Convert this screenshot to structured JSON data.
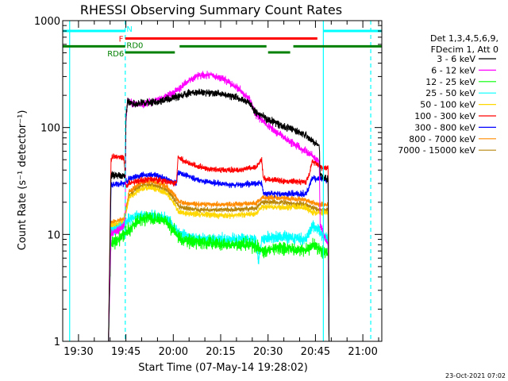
{
  "chart_data": {
    "type": "line",
    "title": "RHESSI Observing Summary Count Rates",
    "xlabel": "Start Time (07-May-14 19:28:02)",
    "ylabel": "Count Rate (s⁻¹ detector⁻¹)",
    "y_scale": "log",
    "ylim": [
      1,
      1000
    ],
    "xlim_minutes": [
      -3.0,
      98.0
    ],
    "x_ticks": [
      {
        "label": "19:30",
        "minute": 2
      },
      {
        "label": "19:45",
        "minute": 17
      },
      {
        "label": "20:00",
        "minute": 32
      },
      {
        "label": "20:15",
        "minute": 47
      },
      {
        "label": "20:30",
        "minute": 62
      },
      {
        "label": "20:45",
        "minute": 77
      },
      {
        "label": "21:00",
        "minute": 92
      }
    ],
    "y_ticks": [
      {
        "label": "1",
        "value": 1
      },
      {
        "label": "10",
        "value": 10
      },
      {
        "label": "100",
        "value": 100
      },
      {
        "label": "1000",
        "value": 1000
      }
    ],
    "legend_header": [
      "Det 1,3,4,5,6,9,",
      "FDecim 1, Att 0"
    ],
    "legend_position": "right",
    "timestamp": "23-Oct-2021 07:02",
    "series": [
      {
        "name": "3 - 6 keV",
        "color": "#000000",
        "points": [
          [
            11.5,
            1
          ],
          [
            12.3,
            36
          ],
          [
            16.4,
            35
          ],
          [
            16.8,
            35
          ],
          [
            17.0,
            120
          ],
          [
            17.5,
            175
          ],
          [
            20,
            165
          ],
          [
            24,
            172
          ],
          [
            28,
            175
          ],
          [
            32,
            190
          ],
          [
            36,
            205
          ],
          [
            40,
            215
          ],
          [
            44,
            212
          ],
          [
            48,
            205
          ],
          [
            52,
            192
          ],
          [
            56,
            172
          ],
          [
            58,
            140
          ],
          [
            62,
            118
          ],
          [
            66,
            105
          ],
          [
            70,
            95
          ],
          [
            74,
            85
          ],
          [
            76,
            75
          ],
          [
            78.2,
            68
          ],
          [
            78.5,
            36
          ],
          [
            81,
            33
          ],
          [
            81.3,
            1
          ]
        ],
        "noise": 0.05
      },
      {
        "name": "6 - 12 keV",
        "color": "#ff00ff",
        "points": [
          [
            11.5,
            1
          ],
          [
            12.3,
            10
          ],
          [
            16.4,
            12
          ],
          [
            16.8,
            14
          ],
          [
            17.0,
            110
          ],
          [
            17.5,
            175
          ],
          [
            20,
            165
          ],
          [
            24,
            170
          ],
          [
            28,
            185
          ],
          [
            32,
            210
          ],
          [
            36,
            260
          ],
          [
            40,
            310
          ],
          [
            44,
            310
          ],
          [
            48,
            282
          ],
          [
            52,
            240
          ],
          [
            56,
            185
          ],
          [
            58,
            135
          ],
          [
            62,
            105
          ],
          [
            66,
            85
          ],
          [
            70,
            70
          ],
          [
            74,
            60
          ],
          [
            76,
            55
          ],
          [
            78.2,
            48
          ],
          [
            78.5,
            12
          ],
          [
            81,
            8
          ],
          [
            81.3,
            1
          ]
        ],
        "noise": 0.05
      },
      {
        "name": "12 - 25 keV",
        "color": "#00ff00",
        "points": [
          [
            11.5,
            1
          ],
          [
            12.3,
            8
          ],
          [
            16.4,
            10
          ],
          [
            18,
            11
          ],
          [
            22,
            14
          ],
          [
            26,
            14
          ],
          [
            30,
            13
          ],
          [
            32,
            11
          ],
          [
            34,
            9
          ],
          [
            40,
            8.5
          ],
          [
            50,
            8
          ],
          [
            58,
            8
          ],
          [
            60,
            7
          ],
          [
            66,
            7.5
          ],
          [
            74,
            7
          ],
          [
            76,
            8
          ],
          [
            78.2,
            7.5
          ],
          [
            79,
            7
          ],
          [
            81,
            6.5
          ],
          [
            81.3,
            1
          ]
        ],
        "noise": 0.09
      },
      {
        "name": "25 - 50 keV",
        "color": "#00ffff",
        "points": [
          [
            11.5,
            1
          ],
          [
            12.3,
            11
          ],
          [
            16.4,
            12
          ],
          [
            18,
            14
          ],
          [
            22,
            15
          ],
          [
            26,
            15
          ],
          [
            30,
            14
          ],
          [
            32,
            12
          ],
          [
            34,
            10
          ],
          [
            40,
            9
          ],
          [
            50,
            9
          ],
          [
            58,
            9
          ],
          [
            59,
            5.5
          ],
          [
            60,
            9
          ],
          [
            66,
            9.5
          ],
          [
            74,
            9
          ],
          [
            76,
            12
          ],
          [
            78.2,
            11
          ],
          [
            79,
            10
          ],
          [
            81,
            9
          ],
          [
            81.3,
            1
          ]
        ],
        "noise": 0.08
      },
      {
        "name": "50 - 100 keV",
        "color": "#ffd700",
        "points": [
          [
            11.5,
            1
          ],
          [
            12.3,
            12
          ],
          [
            16.4,
            13
          ],
          [
            18,
            22
          ],
          [
            22,
            27
          ],
          [
            26,
            27
          ],
          [
            30,
            24
          ],
          [
            32,
            20
          ],
          [
            34,
            16
          ],
          [
            40,
            15.5
          ],
          [
            50,
            15
          ],
          [
            58,
            15.5
          ],
          [
            60,
            18
          ],
          [
            66,
            18
          ],
          [
            74,
            18
          ],
          [
            76,
            16
          ],
          [
            78.2,
            16
          ],
          [
            81,
            16
          ],
          [
            81.3,
            1
          ]
        ],
        "noise": 0.04
      },
      {
        "name": "100 - 300 keV",
        "color": "#ff0000",
        "points": [
          [
            11.5,
            1
          ],
          [
            12.3,
            50
          ],
          [
            13,
            54
          ],
          [
            16.4,
            52
          ],
          [
            17,
            28
          ],
          [
            18,
            30
          ],
          [
            22,
            32
          ],
          [
            26,
            33
          ],
          [
            30,
            31
          ],
          [
            33,
            30
          ],
          [
            33.5,
            52
          ],
          [
            36,
            48
          ],
          [
            40,
            43
          ],
          [
            46,
            40
          ],
          [
            52,
            40
          ],
          [
            58,
            42
          ],
          [
            60,
            50
          ],
          [
            60.5,
            33
          ],
          [
            66,
            32
          ],
          [
            74,
            31
          ],
          [
            75,
            36
          ],
          [
            76,
            48
          ],
          [
            78.2,
            45
          ],
          [
            78.5,
            42
          ],
          [
            81,
            42
          ],
          [
            81.3,
            1
          ]
        ],
        "noise": 0.04
      },
      {
        "name": "300 - 800 keV",
        "color": "#0000ff",
        "points": [
          [
            11.5,
            1
          ],
          [
            12.3,
            29
          ],
          [
            16.4,
            30
          ],
          [
            18,
            33
          ],
          [
            22,
            36
          ],
          [
            26,
            36
          ],
          [
            30,
            33
          ],
          [
            33,
            30
          ],
          [
            33.5,
            38
          ],
          [
            36,
            36
          ],
          [
            40,
            32
          ],
          [
            46,
            30
          ],
          [
            52,
            29
          ],
          [
            58,
            30
          ],
          [
            60,
            30
          ],
          [
            60.5,
            24
          ],
          [
            66,
            24
          ],
          [
            74,
            24
          ],
          [
            75,
            28
          ],
          [
            76,
            34
          ],
          [
            78.2,
            33
          ],
          [
            81,
            32
          ],
          [
            81.3,
            1
          ]
        ],
        "noise": 0.04
      },
      {
        "name": "800 - 7000 keV",
        "color": "#ff8c00",
        "points": [
          [
            11.5,
            1
          ],
          [
            12.3,
            13
          ],
          [
            16.4,
            14
          ],
          [
            18,
            25
          ],
          [
            22,
            31
          ],
          [
            26,
            31
          ],
          [
            30,
            28
          ],
          [
            32,
            24
          ],
          [
            34,
            20
          ],
          [
            40,
            19
          ],
          [
            50,
            19
          ],
          [
            58,
            19.5
          ],
          [
            60,
            22
          ],
          [
            66,
            22
          ],
          [
            74,
            21
          ],
          [
            76,
            20
          ],
          [
            78.2,
            19
          ],
          [
            81,
            19
          ],
          [
            81.3,
            1
          ]
        ],
        "noise": 0.035
      },
      {
        "name": "7000 - 15000 keV",
        "color": "#b8860b",
        "points": [
          [
            11.5,
            1
          ],
          [
            12.3,
            12
          ],
          [
            16.4,
            12.5
          ],
          [
            18,
            23
          ],
          [
            22,
            29
          ],
          [
            26,
            29
          ],
          [
            30,
            26
          ],
          [
            32,
            22
          ],
          [
            34,
            18
          ],
          [
            40,
            17
          ],
          [
            50,
            17
          ],
          [
            58,
            17.5
          ],
          [
            60,
            20
          ],
          [
            66,
            20
          ],
          [
            74,
            19
          ],
          [
            76,
            18
          ],
          [
            78.2,
            17
          ],
          [
            81,
            17
          ],
          [
            81.3,
            1
          ]
        ],
        "noise": 0.035
      }
    ],
    "bars": [
      {
        "label": "N",
        "color": "#00ffff",
        "y": 800,
        "segments": [
          [
            -3,
            16.8
          ],
          [
            79.5,
            98
          ]
        ]
      },
      {
        "label": "F",
        "color": "#ff0000",
        "y": 680,
        "segments": [
          [
            16.8,
            77.6
          ]
        ]
      },
      {
        "label": "RD0",
        "color": "#008000",
        "y": 575,
        "segments": [
          [
            -3,
            16.8
          ],
          [
            34,
            61.5
          ],
          [
            70,
            98
          ]
        ]
      },
      {
        "label": "RD6",
        "color": "#008000",
        "y": 505,
        "segments": [
          [
            16.8,
            32.5
          ],
          [
            62,
            69
          ]
        ]
      }
    ],
    "vlines": [
      {
        "minute": -0.8,
        "color": "#00ffff",
        "style": "solid"
      },
      {
        "minute": 16.8,
        "color": "#00ffff",
        "style": "dashed"
      },
      {
        "minute": 79.5,
        "color": "#00ffff",
        "style": "solid"
      },
      {
        "minute": 94.5,
        "color": "#00ffff",
        "style": "dashed"
      }
    ]
  }
}
